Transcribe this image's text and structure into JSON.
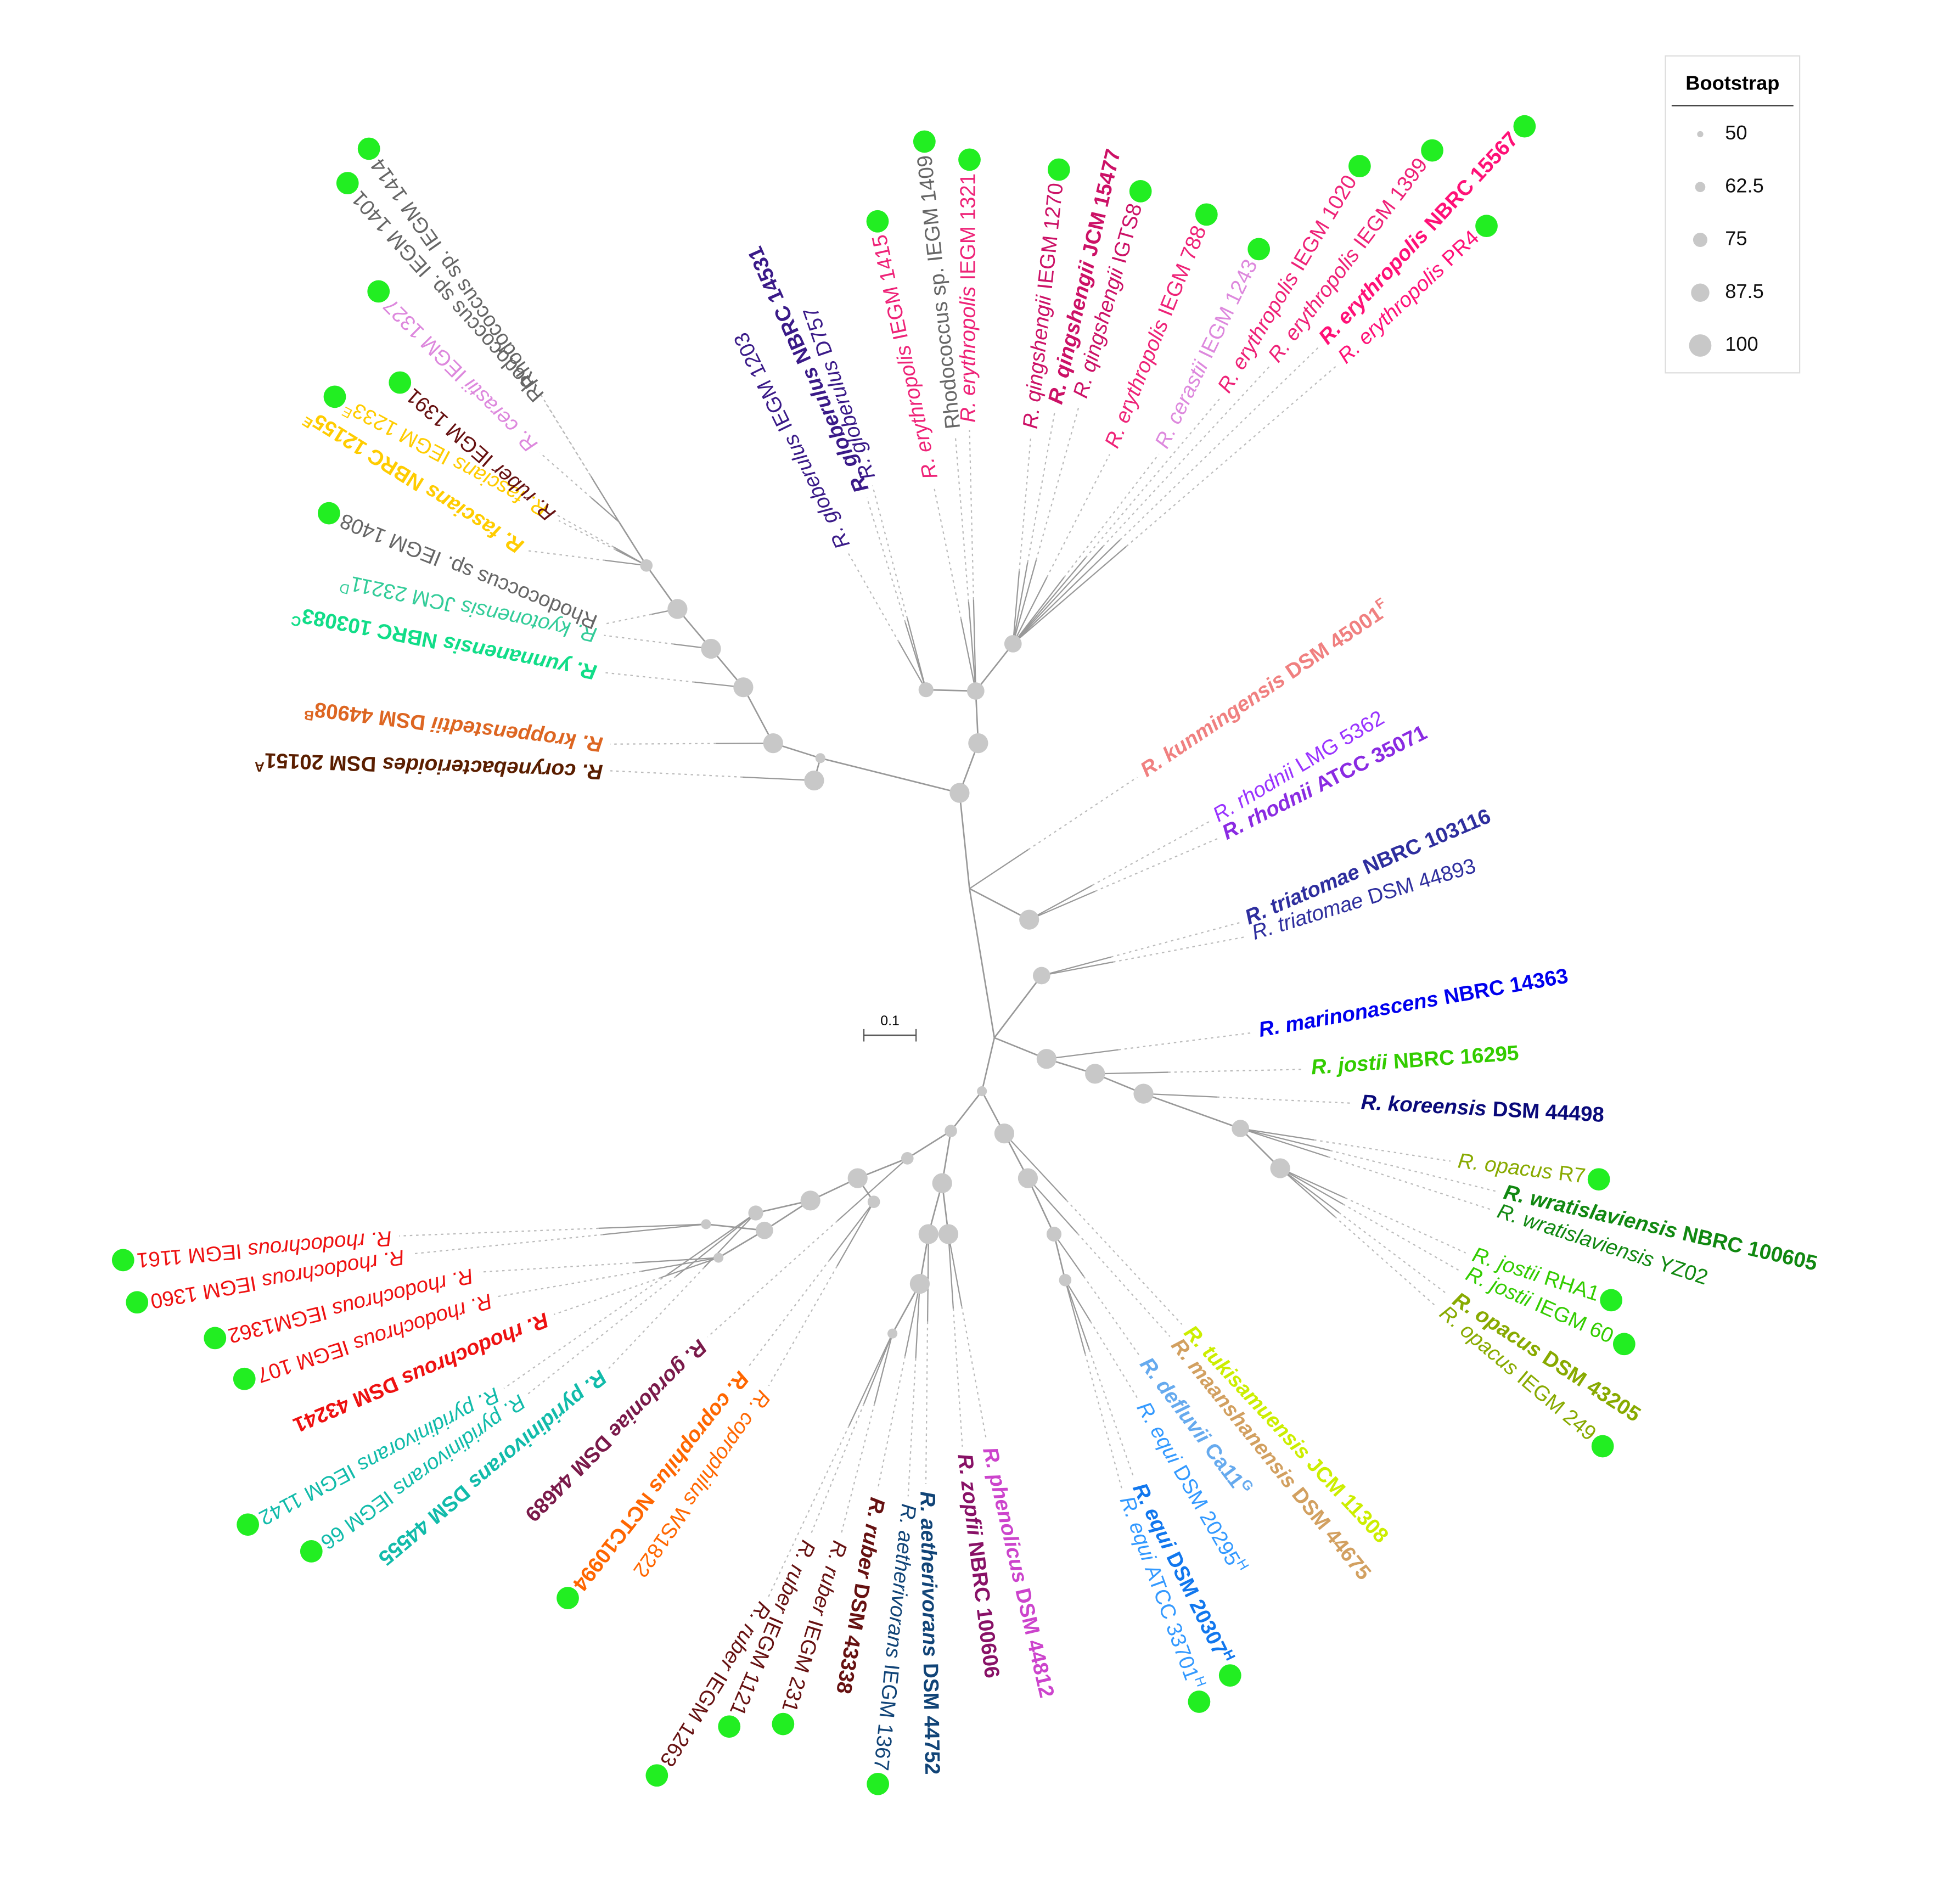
{
  "leaves": [
    {
      "name": "R. kunmingensis",
      "strain": "DSM 45001",
      "sup": "F",
      "color": "#f08080"
    },
    {
      "name": "R. rhodnii",
      "strain": "LMG 5362",
      "color": "#9933ff"
    },
    {
      "name": "R. rhodnii",
      "strain": "ATCC 35071",
      "color": "#8a2be2"
    },
    {
      "name": "R. triatomae",
      "strain": "NBRC 103116",
      "color": "#2e2e9e"
    },
    {
      "name": "R. triatomae",
      "strain": "DSM 44893",
      "color": "#2e2e9e"
    },
    {
      "name": "R. marinonascens",
      "strain": "NBRC 14363",
      "color": "#0000ee"
    },
    {
      "name": "R. jostii",
      "strain": "NBRC 16295",
      "color": "#33cc00"
    },
    {
      "name": "R. koreensis",
      "strain": "DSM 44498",
      "color": "#0a0a7a"
    },
    {
      "name": "R. opacus",
      "strain": "R7",
      "color": "#88aa00"
    },
    {
      "name": "R. wratislaviensis",
      "strain": "NBRC 100605",
      "color": "#118811"
    },
    {
      "name": "R. wratislaviensis",
      "strain": "YZ02",
      "color": "#118811"
    },
    {
      "name": "R. jostii",
      "strain": "RHA1",
      "color": "#33cc00"
    },
    {
      "name": "R. jostii",
      "strain": "IEGM 60",
      "color": "#33cc00"
    },
    {
      "name": "R. opacus",
      "strain": "DSM 43205",
      "color": "#88aa00"
    },
    {
      "name": "R. opacus",
      "strain": "IEGM 249",
      "color": "#88aa00"
    },
    {
      "name": "R. tukisamuensis",
      "strain": "JCM 11308",
      "color": "#ccee00"
    },
    {
      "name": "R. maanshanensis",
      "strain": "DSM 44675",
      "color": "#d2a060"
    },
    {
      "name": "R. defluvii",
      "strain": "Ca11",
      "sup": "G",
      "color": "#66aaee"
    },
    {
      "name": "R. equi",
      "strain": "DSM 20295",
      "sup": "H",
      "color": "#3399ff"
    },
    {
      "name": "R. equi",
      "strain": "DSM 20307",
      "sup": "H",
      "color": "#1177ee"
    },
    {
      "name": "R. equi",
      "strain": "ATCC 33701",
      "sup": "H",
      "color": "#3399ff"
    },
    {
      "name": "R. phenolicus",
      "strain": "DSM 44812",
      "color": "#cc44cc"
    },
    {
      "name": "R. zopfii",
      "strain": "NBRC 100606",
      "color": "#881166"
    },
    {
      "name": "R. aetherivorans",
      "strain": "DSM 44752",
      "color": "#114477"
    },
    {
      "name": "R. aetherivorans",
      "strain": "IEGM 1367",
      "color": "#114477"
    },
    {
      "name": "R. ruber",
      "strain": "DSM 43338",
      "color": "#661111"
    },
    {
      "name": "R. ruber",
      "strain": "IEGM 231",
      "color": "#661111"
    },
    {
      "name": "R. ruber",
      "strain": "IEGM 1121",
      "color": "#661111"
    },
    {
      "name": "R. ruber",
      "strain": "IEGM 1263",
      "color": "#661111"
    },
    {
      "name": "R. coprophilus",
      "strain": "WS1822",
      "color": "#ff6600"
    },
    {
      "name": "R. coprophilus",
      "strain": "NCTC10994",
      "color": "#ff6600"
    },
    {
      "name": "R. gordoniae",
      "strain": "DSM 44689",
      "color": "#7a1a4a"
    },
    {
      "name": "R. pyridinivorans",
      "strain": "DSM 44555",
      "color": "#11bbaa"
    },
    {
      "name": "R. pyridinivorans",
      "strain": "IEGM 66",
      "color": "#11bbaa"
    },
    {
      "name": "R. pyridinivorans",
      "strain": "IEGM 1142",
      "color": "#11bbaa"
    },
    {
      "name": "R. rhodochrous",
      "strain": "DSM 43241",
      "color": "#ee1111"
    },
    {
      "name": "R. rhodochrous",
      "strain": "IEGM 107",
      "color": "#ee1111"
    },
    {
      "name": "R. rhodochrous",
      "strain": "IEGM1362",
      "color": "#ee1111"
    },
    {
      "name": "R. rhodochrous",
      "strain": "IEGM 1360",
      "color": "#ee1111"
    },
    {
      "name": "R. rhodochrous",
      "strain": "IEGM 1161",
      "color": "#ee1111"
    },
    {
      "name": "R. corynebacterioides",
      "strain": "DSM 20151",
      "sup": "A",
      "color": "#5a1e00"
    },
    {
      "name": "R. kroppenstedtii",
      "strain": "DSM 44908",
      "sup": "B",
      "color": "#dd6622"
    },
    {
      "name": "R. yunnanensis",
      "strain": "NBRC 103083",
      "sup": "C",
      "color": "#11dd88"
    },
    {
      "name": "R. kyotonensis",
      "strain": "JCM 23211",
      "sup": "D",
      "color": "#33cc99"
    },
    {
      "name": "Rhodococcus sp.",
      "strain": "IEGM 1408",
      "color": "#666666"
    },
    {
      "name": "R. fascians",
      "strain": "NBRC 12155",
      "sup": "E",
      "color": "#ffcc00"
    },
    {
      "name": "R. fascians",
      "strain": "IEGM 1233",
      "sup": "E",
      "color": "#ffcc00"
    },
    {
      "name": "R. ruber",
      "strain": "IEGM 1391",
      "color": "#661111"
    },
    {
      "name": "R. cerastii",
      "strain": "IEGM 1327",
      "color": "#dd88dd"
    },
    {
      "name": "Rhodococcus sp.",
      "strain": "IEGM 1401",
      "color": "#666666"
    },
    {
      "name": "Rhodococcus sp.",
      "strain": "IEGM 1414",
      "color": "#666666"
    },
    {
      "name": "R. globerulus",
      "strain": "IEGM 1203",
      "color": "#3a1a88"
    },
    {
      "name": "R. globerulus",
      "strain": "NBRC 14531",
      "color": "#3a1a88"
    },
    {
      "name": "R. globerulus",
      "strain": "D757",
      "color": "#3a1a88"
    },
    {
      "name": "R. erythropolis",
      "strain": "IEGM 1415",
      "color": "#ee2277"
    },
    {
      "name": "Rhodococcus sp.",
      "strain": "IEGM 1409",
      "color": "#666666"
    },
    {
      "name": "R. erythropolis",
      "strain": "IEGM 1321",
      "color": "#ee2277"
    },
    {
      "name": "R. qingshengii",
      "strain": "IEGM 1270",
      "color": "#cc1166"
    },
    {
      "name": "R. qingshengii",
      "strain": "JCM 15477",
      "color": "#cc1166"
    },
    {
      "name": "R. qingshengii",
      "strain": "IGTS8",
      "color": "#cc1166"
    },
    {
      "name": "R. erythropolis",
      "strain": "IEGM 788",
      "color": "#ee2277"
    },
    {
      "name": "R. cerastii",
      "strain": "IEGM 1243",
      "color": "#dd88dd"
    },
    {
      "name": "R. erythropolis",
      "strain": "IEGM 1020",
      "color": "#ee2277"
    },
    {
      "name": "R. erythropolis",
      "strain": "IEGM 1399",
      "color": "#ee2277"
    },
    {
      "name": "R. erythropolis",
      "strain": "NBRC 15567",
      "color": "#ff1177"
    },
    {
      "name": "R. erythropolis",
      "strain": "PR4",
      "color": "#ff1177"
    }
  ],
  "scale_bar": "0.1",
  "legend": {
    "title": "Bootstrap",
    "items": [
      50,
      62.5,
      75,
      87.5,
      100
    ]
  }
}
